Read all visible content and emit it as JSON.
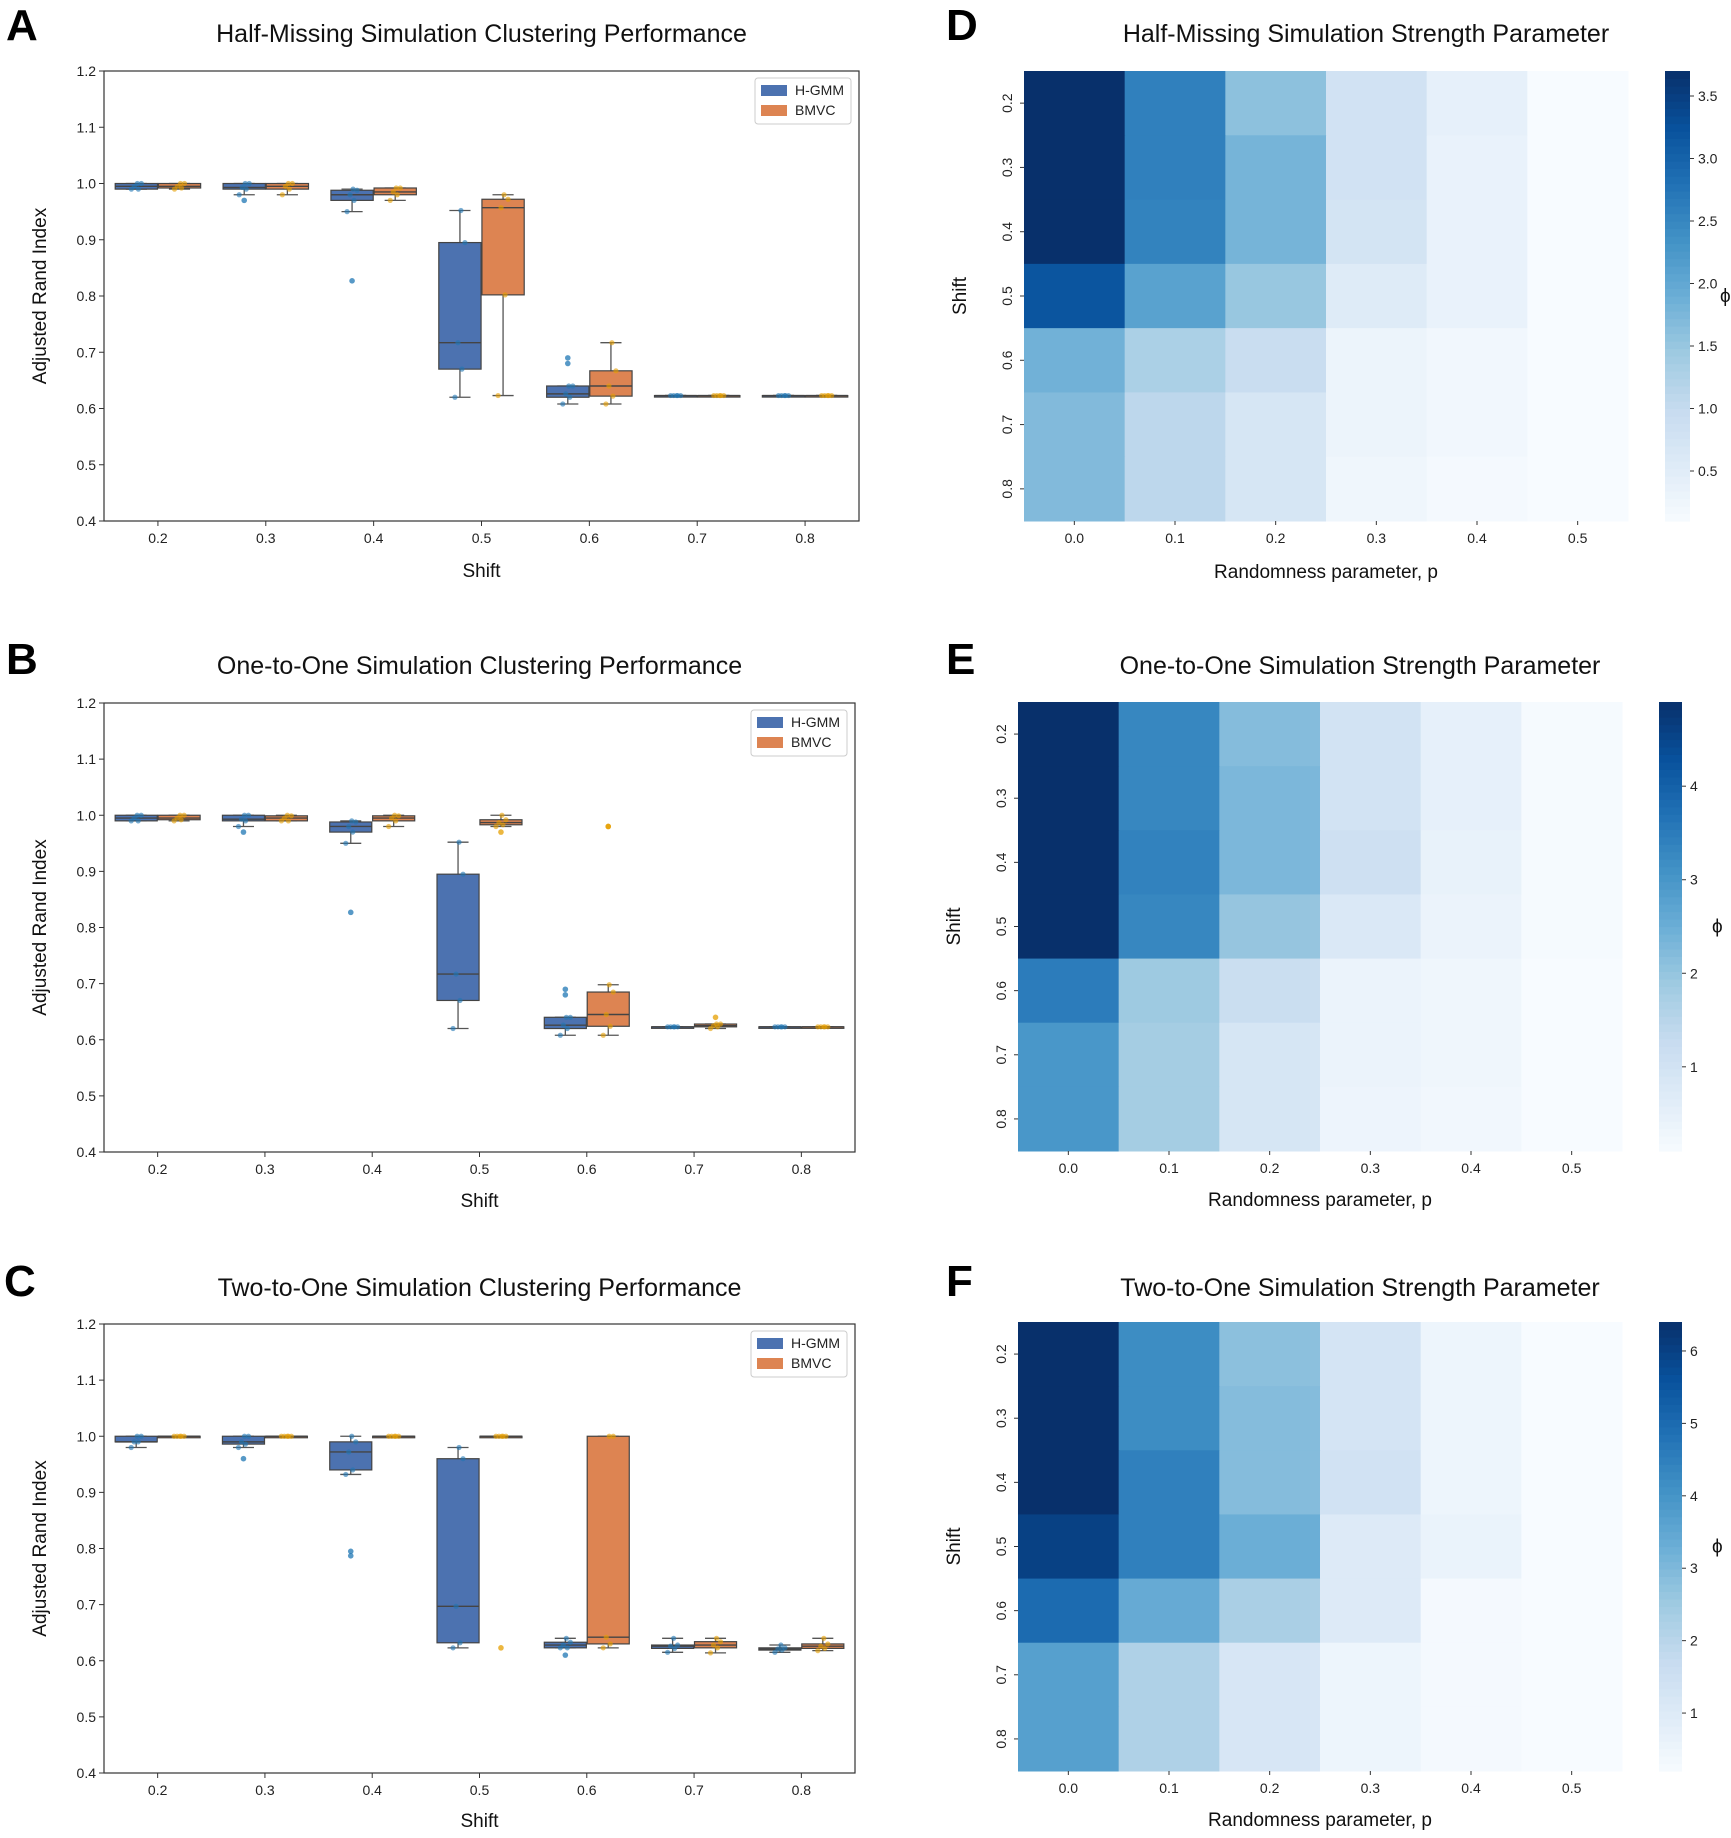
{
  "chart_data": [
    {
      "panel": "A",
      "type": "box",
      "title": "Half-Missing Simulation Clustering Performance",
      "xlabel": "Shift",
      "ylabel": "Adjusted Rand Index",
      "categories": [
        "0.2",
        "0.3",
        "0.4",
        "0.5",
        "0.6",
        "0.7",
        "0.8"
      ],
      "ylim": [
        0.4,
        1.2
      ],
      "yticks": [
        "0.4",
        "0.5",
        "0.6",
        "0.7",
        "0.8",
        "0.9",
        "1.0",
        "1.1",
        "1.2"
      ],
      "legend_position": "top-right",
      "series": [
        {
          "name": "H-GMM",
          "color": "#4c72b0",
          "point_color": "#1f77b4",
          "boxes": [
            [
              0.99,
              0.99,
              0.995,
              1.0,
              1.0
            ],
            [
              0.98,
              0.99,
              0.993,
              1.0,
              1.0
            ],
            [
              0.95,
              0.97,
              0.98,
              0.988,
              0.99
            ],
            [
              0.62,
              0.67,
              0.717,
              0.895,
              0.952
            ],
            [
              0.608,
              0.62,
              0.626,
              0.64,
              0.64
            ],
            [
              0.623,
              0.623,
              0.623,
              0.623,
              0.623
            ],
            [
              0.623,
              0.623,
              0.623,
              0.623,
              0.623
            ]
          ],
          "fliers": [
            [],
            [
              0.97
            ],
            [
              0.827
            ],
            [],
            [
              0.69,
              0.68
            ],
            [],
            []
          ]
        },
        {
          "name": "BMVC",
          "color": "#dd8452",
          "point_color": "#e69f00",
          "boxes": [
            [
              0.99,
              0.992,
              0.995,
              1.0,
              1.0
            ],
            [
              0.98,
              0.99,
              0.995,
              1.0,
              1.0
            ],
            [
              0.97,
              0.98,
              0.985,
              0.992,
              0.992
            ],
            [
              0.623,
              0.802,
              0.957,
              0.972,
              0.98
            ],
            [
              0.608,
              0.622,
              0.64,
              0.667,
              0.717
            ],
            [
              0.623,
              0.623,
              0.623,
              0.623,
              0.623
            ],
            [
              0.623,
              0.623,
              0.623,
              0.623,
              0.623
            ]
          ],
          "fliers": [
            [],
            [],
            [],
            [],
            [],
            [],
            []
          ]
        }
      ]
    },
    {
      "panel": "B",
      "type": "box",
      "title": "One-to-One Simulation Clustering Performance",
      "xlabel": "Shift",
      "ylabel": "Adjusted Rand Index",
      "categories": [
        "0.2",
        "0.3",
        "0.4",
        "0.5",
        "0.6",
        "0.7",
        "0.8"
      ],
      "ylim": [
        0.4,
        1.2
      ],
      "yticks": [
        "0.4",
        "0.5",
        "0.6",
        "0.7",
        "0.8",
        "0.9",
        "1.0",
        "1.1",
        "1.2"
      ],
      "legend_position": "top-right",
      "series": [
        {
          "name": "H-GMM",
          "color": "#4c72b0",
          "point_color": "#1f77b4",
          "boxes": [
            [
              0.99,
              0.99,
              0.995,
              1.0,
              1.0
            ],
            [
              0.98,
              0.99,
              0.993,
              1.0,
              1.0
            ],
            [
              0.95,
              0.97,
              0.98,
              0.988,
              0.99
            ],
            [
              0.62,
              0.67,
              0.717,
              0.895,
              0.952
            ],
            [
              0.608,
              0.62,
              0.626,
              0.64,
              0.64
            ],
            [
              0.623,
              0.623,
              0.623,
              0.623,
              0.623
            ],
            [
              0.623,
              0.623,
              0.623,
              0.623,
              0.623
            ]
          ],
          "fliers": [
            [],
            [
              0.97
            ],
            [
              0.827
            ],
            [],
            [
              0.69,
              0.68
            ],
            [],
            []
          ]
        },
        {
          "name": "BMVC",
          "color": "#dd8452",
          "point_color": "#e69f00",
          "boxes": [
            [
              0.99,
              0.992,
              0.995,
              1.0,
              1.0
            ],
            [
              0.99,
              0.99,
              0.995,
              0.999,
              1.0
            ],
            [
              0.98,
              0.99,
              0.995,
              0.999,
              1.0
            ],
            [
              0.98,
              0.983,
              0.987,
              0.992,
              1.0
            ],
            [
              0.608,
              0.624,
              0.645,
              0.685,
              0.698
            ],
            [
              0.62,
              0.623,
              0.625,
              0.628,
              0.628
            ],
            [
              0.623,
              0.623,
              0.623,
              0.623,
              0.623
            ]
          ],
          "fliers": [
            [],
            [],
            [],
            [
              0.97
            ],
            [
              0.98,
              0.98
            ],
            [
              0.64
            ],
            []
          ]
        }
      ]
    },
    {
      "panel": "C",
      "type": "box",
      "title": "Two-to-One Simulation Clustering Performance",
      "xlabel": "Shift",
      "ylabel": "Adjusted Rand Index",
      "categories": [
        "0.2",
        "0.3",
        "0.4",
        "0.5",
        "0.6",
        "0.7",
        "0.8"
      ],
      "ylim": [
        0.4,
        1.2
      ],
      "yticks": [
        "0.4",
        "0.5",
        "0.6",
        "0.7",
        "0.8",
        "0.9",
        "1.0",
        "1.1",
        "1.2"
      ],
      "legend_position": "top-right",
      "series": [
        {
          "name": "H-GMM",
          "color": "#4c72b0",
          "point_color": "#1f77b4",
          "boxes": [
            [
              0.98,
              0.99,
              0.99,
              1.0,
              1.0
            ],
            [
              0.98,
              0.986,
              0.99,
              1.0,
              1.0
            ],
            [
              0.932,
              0.94,
              0.972,
              0.99,
              1.0
            ],
            [
              0.623,
              0.632,
              0.697,
              0.96,
              0.98
            ],
            [
              0.623,
              0.623,
              0.628,
              0.633,
              0.64
            ],
            [
              0.615,
              0.622,
              0.626,
              0.628,
              0.64
            ],
            [
              0.615,
              0.619,
              0.621,
              0.623,
              0.628
            ]
          ],
          "fliers": [
            [],
            [
              0.96
            ],
            [
              0.795,
              0.787
            ],
            [],
            [
              0.61
            ],
            [],
            []
          ]
        },
        {
          "name": "BMVC",
          "color": "#dd8452",
          "point_color": "#e69f00",
          "boxes": [
            [
              1.0,
              1.0,
              1.0,
              1.0,
              1.0
            ],
            [
              1.0,
              1.0,
              1.0,
              1.0,
              1.0
            ],
            [
              1.0,
              1.0,
              1.0,
              1.0,
              1.0
            ],
            [
              1.0,
              1.0,
              1.0,
              1.0,
              1.0
            ],
            [
              0.623,
              0.63,
              0.642,
              1.0,
              1.0
            ],
            [
              0.614,
              0.623,
              0.628,
              0.634,
              0.64
            ],
            [
              0.618,
              0.622,
              0.626,
              0.63,
              0.64
            ]
          ],
          "fliers": [
            [],
            [],
            [],
            [
              0.623
            ],
            [],
            [],
            []
          ]
        }
      ]
    },
    {
      "panel": "D",
      "type": "heatmap",
      "title": "Half-Missing Simulation Strength Parameter",
      "xlabel": "Randomness parameter, p",
      "ylabel": "Shift",
      "colorbar_label": "ϕ",
      "colormap": "Blues",
      "x": [
        "0.0",
        "0.1",
        "0.2",
        "0.3",
        "0.4",
        "0.5"
      ],
      "y": [
        "0.2",
        "0.3",
        "0.4",
        "0.5",
        "0.6",
        "0.7",
        "0.8"
      ],
      "color_range": [
        0.1,
        3.7
      ],
      "colorbar_ticks": [
        "0.5",
        "1.0",
        "1.5",
        "2.0",
        "2.5",
        "3.0",
        "3.5"
      ],
      "values": [
        [
          3.7,
          2.6,
          1.6,
          0.8,
          0.4,
          0.1
        ],
        [
          3.7,
          2.6,
          1.8,
          0.8,
          0.35,
          0.1
        ],
        [
          3.7,
          2.55,
          1.8,
          0.75,
          0.35,
          0.1
        ],
        [
          3.2,
          2.1,
          1.5,
          0.55,
          0.35,
          0.1
        ],
        [
          1.85,
          1.3,
          0.95,
          0.3,
          0.2,
          0.1
        ],
        [
          1.7,
          1.1,
          0.7,
          0.3,
          0.2,
          0.1
        ],
        [
          1.7,
          1.1,
          0.7,
          0.25,
          0.15,
          0.1
        ]
      ]
    },
    {
      "panel": "E",
      "type": "heatmap",
      "title": "One-to-One Simulation Strength Parameter",
      "xlabel": "Randomness parameter, p",
      "ylabel": "Shift",
      "colorbar_label": "ϕ",
      "colormap": "Blues",
      "x": [
        "0.0",
        "0.1",
        "0.2",
        "0.3",
        "0.4",
        "0.5"
      ],
      "y": [
        "0.2",
        "0.3",
        "0.4",
        "0.5",
        "0.6",
        "0.7",
        "0.8"
      ],
      "color_range": [
        0.1,
        4.9
      ],
      "colorbar_ticks": [
        "1",
        "2",
        "3",
        "4"
      ],
      "values": [
        [
          4.9,
          3.3,
          2.2,
          1.0,
          0.5,
          0.15
        ],
        [
          4.9,
          3.3,
          2.3,
          1.0,
          0.5,
          0.15
        ],
        [
          4.9,
          3.4,
          2.3,
          1.1,
          0.45,
          0.15
        ],
        [
          4.9,
          3.3,
          2.0,
          0.8,
          0.4,
          0.15
        ],
        [
          3.5,
          1.9,
          1.2,
          0.4,
          0.3,
          0.1
        ],
        [
          3.0,
          1.8,
          0.9,
          0.4,
          0.3,
          0.1
        ],
        [
          3.0,
          1.8,
          0.9,
          0.35,
          0.25,
          0.1
        ]
      ]
    },
    {
      "panel": "F",
      "type": "heatmap",
      "title": "Two-to-One Simulation Strength Parameter",
      "xlabel": "Randomness parameter, p",
      "ylabel": "Shift",
      "colorbar_label": "ϕ",
      "colormap": "Blues",
      "x": [
        "0.0",
        "0.1",
        "0.2",
        "0.3",
        "0.4",
        "0.5"
      ],
      "y": [
        "0.2",
        "0.3",
        "0.4",
        "0.5",
        "0.6",
        "0.7",
        "0.8"
      ],
      "color_range": [
        0.2,
        6.4
      ],
      "colorbar_ticks": [
        "1",
        "2",
        "3",
        "4",
        "5",
        "6"
      ],
      "values": [
        [
          6.4,
          4.2,
          2.8,
          1.3,
          0.5,
          0.2
        ],
        [
          6.4,
          4.2,
          2.9,
          1.3,
          0.5,
          0.2
        ],
        [
          6.4,
          4.5,
          2.9,
          1.4,
          0.5,
          0.2
        ],
        [
          6.0,
          4.5,
          3.3,
          1.0,
          0.6,
          0.2
        ],
        [
          5.0,
          3.4,
          2.3,
          1.0,
          0.3,
          0.2
        ],
        [
          3.7,
          2.2,
          1.2,
          0.5,
          0.3,
          0.2
        ],
        [
          3.7,
          2.2,
          1.2,
          0.5,
          0.3,
          0.2
        ]
      ]
    }
  ]
}
